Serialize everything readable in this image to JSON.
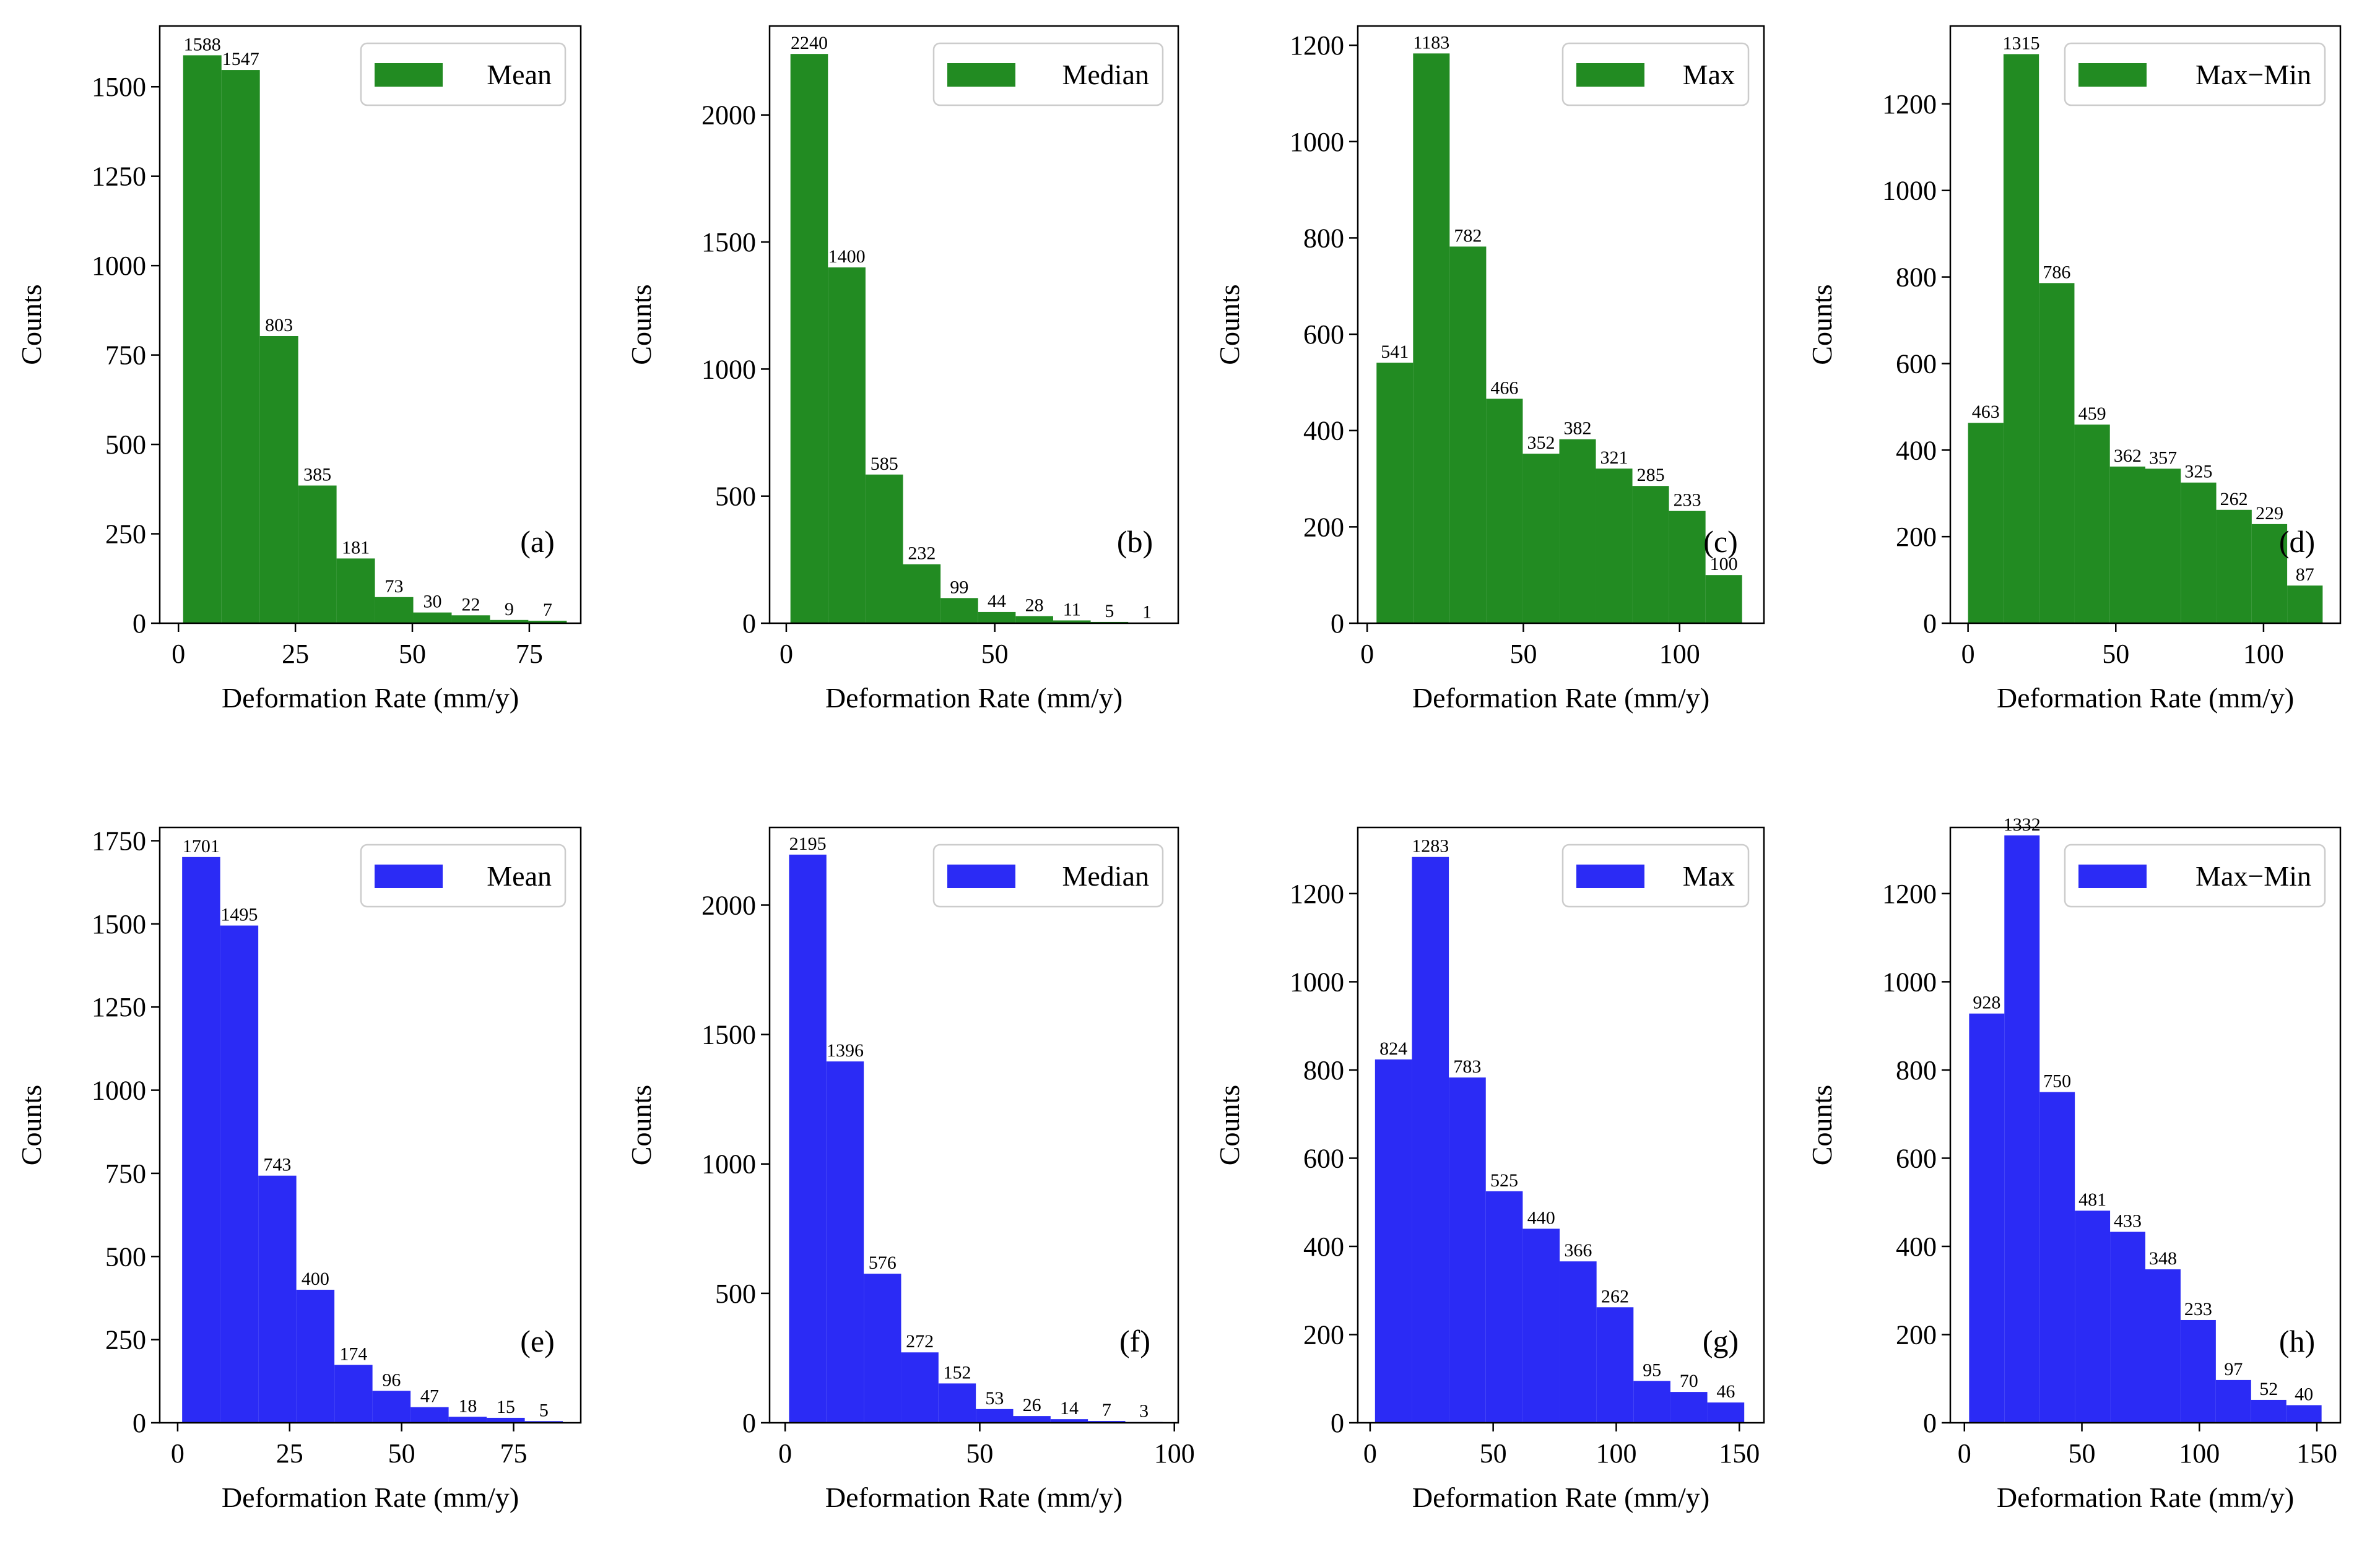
{
  "chart_data": [
    {
      "type": "bar",
      "panel_label": "(a)",
      "legend": "Mean",
      "color": "#228b22",
      "xlabel": "Deformation Rate (mm/y)",
      "ylabel": "Counts",
      "xlim": [
        -4,
        86
      ],
      "ylim": [
        0,
        1670
      ],
      "xticks": [
        0,
        25,
        50,
        75
      ],
      "yticks": [
        0,
        250,
        500,
        750,
        1000,
        1250,
        1500
      ],
      "bin_start": 1,
      "bin_width": 8.2,
      "values": [
        1588,
        1547,
        803,
        385,
        181,
        73,
        30,
        22,
        9,
        7
      ]
    },
    {
      "type": "bar",
      "panel_label": "(b)",
      "legend": "Median",
      "color": "#228b22",
      "xlabel": "Deformation Rate (mm/y)",
      "ylabel": "Counts",
      "xlim": [
        -4,
        94
      ],
      "ylim": [
        0,
        2350
      ],
      "xticks": [
        0,
        50
      ],
      "yticks": [
        0,
        500,
        1000,
        1500,
        2000
      ],
      "bin_start": 1,
      "bin_width": 9,
      "values": [
        2240,
        1400,
        585,
        232,
        99,
        44,
        28,
        11,
        5,
        1
      ]
    },
    {
      "type": "bar",
      "panel_label": "(c)",
      "legend": "Max",
      "color": "#228b22",
      "xlabel": "Deformation Rate (mm/y)",
      "ylabel": "Counts",
      "xlim": [
        -3,
        127
      ],
      "ylim": [
        0,
        1240
      ],
      "xticks": [
        0,
        50,
        100
      ],
      "yticks": [
        0,
        200,
        400,
        600,
        800,
        1000,
        1200
      ],
      "bin_start": 3,
      "bin_width": 11.7,
      "values": [
        541,
        1183,
        782,
        466,
        352,
        382,
        321,
        285,
        233,
        100
      ]
    },
    {
      "type": "bar",
      "panel_label": "(d)",
      "legend": "Max−Min",
      "color": "#228b22",
      "xlabel": "Deformation Rate (mm/y)",
      "ylabel": "Counts",
      "xlim": [
        -6,
        126
      ],
      "ylim": [
        0,
        1380
      ],
      "xticks": [
        0,
        50,
        100
      ],
      "yticks": [
        0,
        200,
        400,
        600,
        800,
        1000,
        1200
      ],
      "bin_start": 0,
      "bin_width": 12,
      "values": [
        463,
        1315,
        786,
        459,
        362,
        357,
        325,
        262,
        229,
        87
      ]
    },
    {
      "type": "bar",
      "panel_label": "(e)",
      "legend": "Mean",
      "color": "#2b2bf5",
      "xlabel": "Deformation Rate (mm/y)",
      "ylabel": "Counts",
      "xlim": [
        -4,
        90
      ],
      "ylim": [
        0,
        1790
      ],
      "xticks": [
        0,
        25,
        50,
        75
      ],
      "yticks": [
        0,
        250,
        500,
        750,
        1000,
        1250,
        1500,
        1750
      ],
      "bin_start": 1,
      "bin_width": 8.5,
      "values": [
        1701,
        1495,
        743,
        400,
        174,
        96,
        47,
        18,
        15,
        5
      ]
    },
    {
      "type": "bar",
      "panel_label": "(f)",
      "legend": "Median",
      "color": "#2b2bf5",
      "xlabel": "Deformation Rate (mm/y)",
      "ylabel": "Counts",
      "xlim": [
        -4,
        101
      ],
      "ylim": [
        0,
        2300
      ],
      "xticks": [
        0,
        50,
        100
      ],
      "yticks": [
        0,
        500,
        1000,
        1500,
        2000
      ],
      "bin_start": 1,
      "bin_width": 9.6,
      "values": [
        2195,
        1396,
        576,
        272,
        152,
        53,
        26,
        14,
        7,
        3
      ]
    },
    {
      "type": "bar",
      "panel_label": "(g)",
      "legend": "Max",
      "color": "#2b2bf5",
      "xlabel": "Deformation Rate (mm/y)",
      "ylabel": "Counts",
      "xlim": [
        -5,
        160
      ],
      "ylim": [
        0,
        1350
      ],
      "xticks": [
        0,
        50,
        100,
        150
      ],
      "yticks": [
        0,
        200,
        400,
        600,
        800,
        1000,
        1200
      ],
      "bin_start": 2,
      "bin_width": 15,
      "values": [
        824,
        1283,
        783,
        525,
        440,
        366,
        262,
        95,
        70,
        46
      ]
    },
    {
      "type": "bar",
      "panel_label": "(h)",
      "legend": "Max−Min",
      "color": "#2b2bf5",
      "xlabel": "Deformation Rate (mm/y)",
      "ylabel": "Counts",
      "xlim": [
        -6,
        160
      ],
      "ylim": [
        0,
        1350
      ],
      "xticks": [
        0,
        50,
        100,
        150
      ],
      "yticks": [
        0,
        200,
        400,
        600,
        800,
        1000,
        1200
      ],
      "bin_start": 2,
      "bin_width": 15,
      "values": [
        928,
        1332,
        750,
        481,
        433,
        348,
        233,
        97,
        52,
        40
      ]
    }
  ]
}
